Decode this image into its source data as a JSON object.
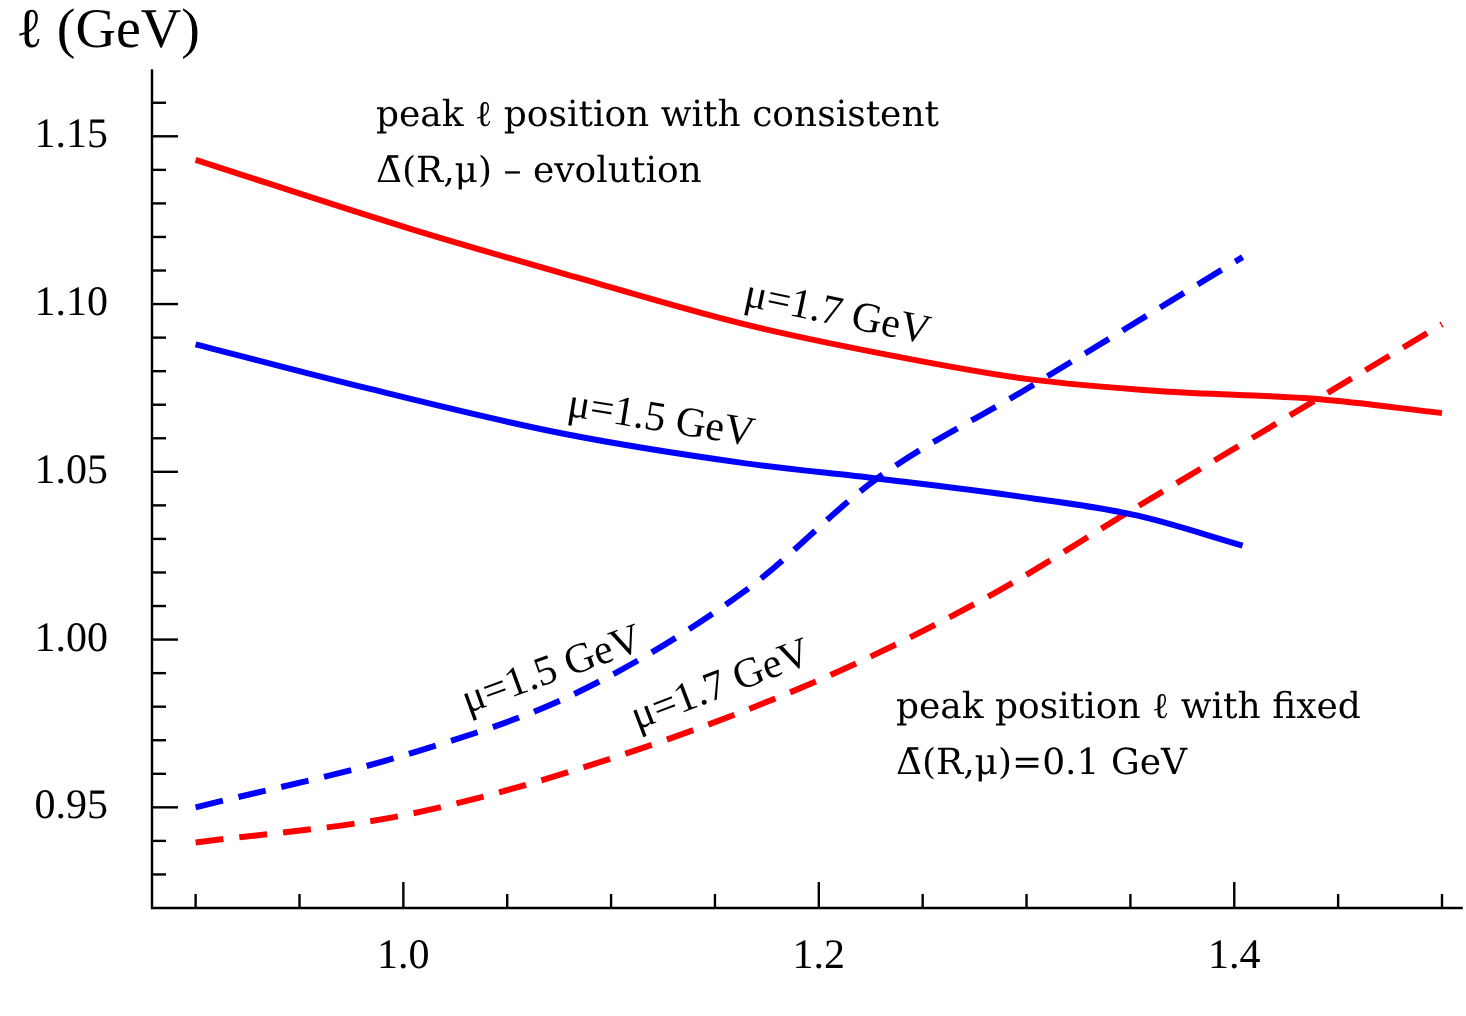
{
  "chart_data": {
    "type": "line",
    "ylabel": "ℓ (GeV)",
    "xlim": [
      0.879,
      1.51
    ],
    "ylim": [
      0.92,
      1.17
    ],
    "xticks": [
      {
        "value": 0.9,
        "label": null
      },
      {
        "value": 0.95,
        "label": null
      },
      {
        "value": 1.0,
        "label": "1.0"
      },
      {
        "value": 1.05,
        "label": null
      },
      {
        "value": 1.1,
        "label": null
      },
      {
        "value": 1.15,
        "label": null
      },
      {
        "value": 1.2,
        "label": "1.2"
      },
      {
        "value": 1.25,
        "label": null
      },
      {
        "value": 1.3,
        "label": null
      },
      {
        "value": 1.35,
        "label": null
      },
      {
        "value": 1.4,
        "label": "1.4"
      },
      {
        "value": 1.45,
        "label": null
      },
      {
        "value": 1.5,
        "label": null
      }
    ],
    "yticks": [
      {
        "value": 0.93,
        "label": null
      },
      {
        "value": 0.94,
        "label": null
      },
      {
        "value": 0.95,
        "label": "0.95"
      },
      {
        "value": 0.96,
        "label": null
      },
      {
        "value": 0.97,
        "label": null
      },
      {
        "value": 0.98,
        "label": null
      },
      {
        "value": 0.99,
        "label": null
      },
      {
        "value": 1.0,
        "label": "1.00"
      },
      {
        "value": 1.01,
        "label": null
      },
      {
        "value": 1.02,
        "label": null
      },
      {
        "value": 1.03,
        "label": null
      },
      {
        "value": 1.04,
        "label": null
      },
      {
        "value": 1.05,
        "label": "1.05"
      },
      {
        "value": 1.06,
        "label": null
      },
      {
        "value": 1.07,
        "label": null
      },
      {
        "value": 1.08,
        "label": null
      },
      {
        "value": 1.09,
        "label": null
      },
      {
        "value": 1.1,
        "label": "1.10"
      },
      {
        "value": 1.11,
        "label": null
      },
      {
        "value": 1.12,
        "label": null
      },
      {
        "value": 1.13,
        "label": null
      },
      {
        "value": 1.14,
        "label": null
      },
      {
        "value": 1.15,
        "label": "1.15"
      },
      {
        "value": 1.16,
        "label": null
      }
    ],
    "grid": false,
    "legend": false,
    "marker": "none",
    "series": [
      {
        "name": "μ=1.7 GeV",
        "color": "#ff0000",
        "line_style": "solid",
        "x": [
          0.9,
          1.003,
          1.083,
          1.164,
          1.244,
          1.3,
          1.365,
          1.44,
          1.5
        ],
        "values": [
          1.143,
          1.1225,
          1.108,
          1.094,
          1.0836,
          1.0777,
          1.074,
          1.0717,
          1.0675
        ]
      },
      {
        "name": "μ=1.5 GeV",
        "color": "#0000ff",
        "line_style": "solid",
        "x": [
          0.9,
          0.984,
          1.076,
          1.164,
          1.228,
          1.304,
          1.353,
          1.404
        ],
        "values": [
          1.088,
          1.0747,
          1.0615,
          1.0526,
          1.048,
          1.042,
          1.037,
          1.028
        ]
      },
      {
        "name": "μ=1.5 GeV",
        "color": "#0000ff",
        "line_style": "dashed",
        "x": [
          0.9,
          1.003,
          1.083,
          1.164,
          1.228,
          1.3,
          1.404
        ],
        "values": [
          0.95,
          0.966,
          0.984,
          1.0143,
          1.048,
          1.0747,
          1.114
        ]
      },
      {
        "name": "μ=1.7 GeV",
        "color": "#ff0000",
        "line_style": "dashed",
        "x": [
          0.9,
          1.003,
          1.107,
          1.204,
          1.285,
          1.349,
          1.44,
          1.5
        ],
        "values": [
          0.9395,
          0.948,
          0.966,
          0.989,
          1.014,
          1.038,
          1.0717,
          1.094
        ]
      }
    ],
    "annotations": [
      "peak ℓ position with consistent\nΔ̄(R,μ) – evolution",
      "peak position ℓ with fixed\nΔ̄(R,μ)=0.1 GeV"
    ]
  }
}
